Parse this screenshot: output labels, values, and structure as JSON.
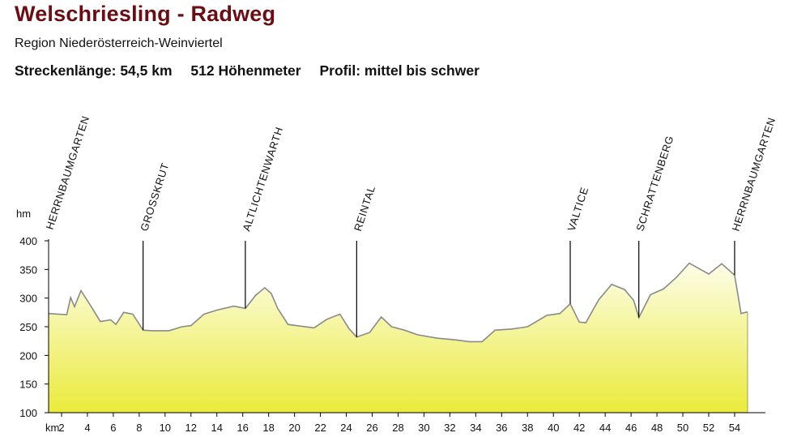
{
  "title": "Welschriesling - Radweg",
  "region": "Region Niederösterreich-Weinviertel",
  "stats": {
    "length": "Streckenlänge: 54,5 km",
    "elevation": "512 Höhenmeter",
    "profile": "Profil: mittel bis schwer"
  },
  "colors": {
    "title": "#6b0d12",
    "fill_top": "#fdfde8",
    "fill_bottom": "#eaea3c",
    "outline": "#8a8a8a",
    "axis": "#000000"
  },
  "chart_data": {
    "type": "area",
    "ylabel": "hm",
    "xlabel": "km",
    "xlim": [
      1,
      55
    ],
    "ylim": [
      100,
      400
    ],
    "yticks": [
      100,
      150,
      200,
      250,
      300,
      350,
      400
    ],
    "xticks": [
      2,
      4,
      6,
      8,
      10,
      12,
      14,
      16,
      18,
      20,
      22,
      24,
      26,
      28,
      30,
      32,
      34,
      36,
      38,
      40,
      42,
      44,
      46,
      48,
      50,
      52,
      54
    ],
    "grid": false,
    "legend": "none",
    "x": [
      1.0,
      2.4,
      2.7,
      3.0,
      3.5,
      4.3,
      5.0,
      5.8,
      6.2,
      6.8,
      7.5,
      8.3,
      9.0,
      10.3,
      11.3,
      12.0,
      13.0,
      14.0,
      15.3,
      16.2,
      17.0,
      17.7,
      18.2,
      18.7,
      19.5,
      20.5,
      21.5,
      22.5,
      23.5,
      24.2,
      24.8,
      25.8,
      26.7,
      27.5,
      28.5,
      29.5,
      31.0,
      32.5,
      33.5,
      34.5,
      35.5,
      36.8,
      38.0,
      39.5,
      40.5,
      41.3,
      42.0,
      42.5,
      43.5,
      44.5,
      45.5,
      46.2,
      46.6,
      47.5,
      48.5,
      49.5,
      50.5,
      52.0,
      53.0,
      54.0,
      54.5,
      55.0
    ],
    "y": [
      273,
      271,
      301,
      285,
      313,
      285,
      259,
      262,
      254,
      275,
      272,
      244,
      243,
      243,
      250,
      252,
      272,
      279,
      286,
      282,
      305,
      318,
      308,
      282,
      254,
      251,
      248,
      263,
      272,
      247,
      232,
      240,
      267,
      250,
      244,
      236,
      230,
      227,
      224,
      224,
      244,
      246,
      250,
      270,
      273,
      290,
      258,
      257,
      297,
      324,
      315,
      296,
      266,
      306,
      316,
      336,
      361,
      342,
      360,
      340,
      273,
      276
    ],
    "waypoints": [
      {
        "name": "HERRNBAUMGARTEN",
        "km": 1.0
      },
      {
        "name": "GROSSKRUT",
        "km": 8.3
      },
      {
        "name": "ALTLICHTENWARTH",
        "km": 16.2
      },
      {
        "name": "REINTAL",
        "km": 24.8
      },
      {
        "name": "VALTICE",
        "km": 41.3
      },
      {
        "name": "SCHRATTENBERG",
        "km": 46.6
      },
      {
        "name": "HERRNBAUMGARTEN",
        "km": 54.0
      }
    ]
  }
}
